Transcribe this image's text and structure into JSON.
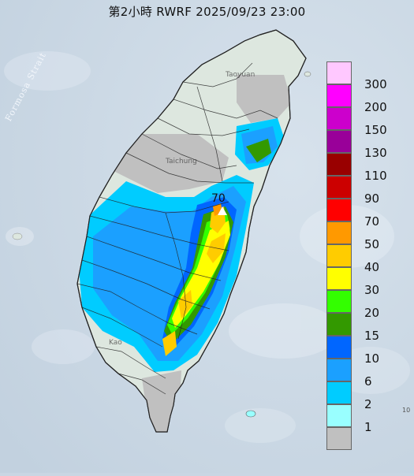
{
  "title": "第2小時  RWRF 2025/09/23 23:00",
  "strait_label": "Formosa Strait",
  "peak_label": "70",
  "place_labels": [
    "Taoyuan",
    "Taichung",
    "Kao"
  ],
  "legend": {
    "levels": [
      "300",
      "200",
      "150",
      "130",
      "110",
      "90",
      "70",
      "50",
      "40",
      "30",
      "20",
      "15",
      "10",
      "6",
      "2",
      "1"
    ],
    "colors": [
      "#ffc8ff",
      "#ff00ff",
      "#cc00cc",
      "#990099",
      "#990000",
      "#cc0000",
      "#ff0000",
      "#ff9900",
      "#ffcc00",
      "#ffff00",
      "#33ff00",
      "#339900",
      "#0066ff",
      "#1ba0ff",
      "#00ccff",
      "#99ffff",
      "#c0c0c0"
    ]
  },
  "colors": {
    "sea": "#c9d6e3",
    "land": "#dde7df",
    "no_rain": "#c0c0c0",
    "rain_2": "#00ccff",
    "rain_6": "#1ba0ff",
    "rain_10": "#0066ff",
    "rain_15": "#339900",
    "rain_20": "#33ff00",
    "rain_30": "#ffff00",
    "rain_40": "#ffcc00",
    "rain_50": "#ff9900"
  },
  "corner_text": "10"
}
